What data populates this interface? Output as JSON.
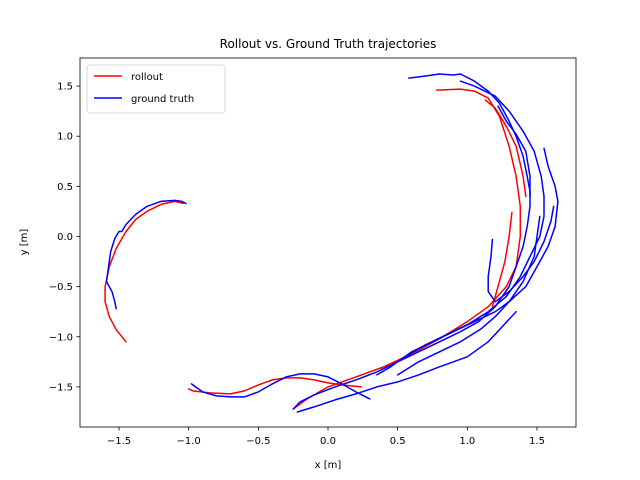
{
  "chart_data": {
    "type": "line",
    "title": "Rollout vs. Ground Truth trajectories",
    "xlabel": "x [m]",
    "ylabel": "y [m]",
    "xlim": [
      -1.78,
      1.78
    ],
    "ylim": [
      -1.9,
      1.78
    ],
    "xticks": [
      -1.5,
      -1.0,
      -0.5,
      0.0,
      0.5,
      1.0,
      1.5
    ],
    "xtick_labels": [
      "−1.5",
      "−1.0",
      "−0.5",
      "0.0",
      "0.5",
      "1.0",
      "1.5"
    ],
    "yticks": [
      -1.5,
      -1.0,
      -0.5,
      0.0,
      0.5,
      1.0,
      1.5
    ],
    "ytick_labels": [
      "−1.5",
      "−1.0",
      "−0.5",
      "0.0",
      "0.5",
      "1.0",
      "1.5"
    ],
    "grid": false,
    "legend_position": "top-left",
    "legend": [
      {
        "label": "rollout",
        "color": "#ff0000"
      },
      {
        "label": "ground truth",
        "color": "#0000ff"
      }
    ],
    "series": [
      {
        "name": "rollout",
        "color": "#ff0000",
        "segments": [
          [
            [
              -1.04,
              0.33
            ],
            [
              -1.1,
              0.35
            ],
            [
              -1.2,
              0.32
            ],
            [
              -1.3,
              0.25
            ],
            [
              -1.38,
              0.17
            ],
            [
              -1.45,
              0.05
            ],
            [
              -1.52,
              -0.12
            ],
            [
              -1.57,
              -0.3
            ],
            [
              -1.6,
              -0.5
            ],
            [
              -1.6,
              -0.65
            ],
            [
              -1.57,
              -0.8
            ],
            [
              -1.52,
              -0.93
            ],
            [
              -1.45,
              -1.05
            ]
          ],
          [
            [
              0.78,
              1.46
            ],
            [
              0.95,
              1.47
            ],
            [
              1.05,
              1.45
            ],
            [
              1.15,
              1.38
            ],
            [
              1.23,
              1.2
            ],
            [
              1.3,
              0.9
            ],
            [
              1.35,
              0.6
            ],
            [
              1.38,
              0.3
            ],
            [
              1.38,
              0.0
            ],
            [
              1.35,
              -0.3
            ],
            [
              1.28,
              -0.5
            ],
            [
              1.15,
              -0.7
            ],
            [
              1.0,
              -0.85
            ],
            [
              0.8,
              -1.02
            ],
            [
              0.6,
              -1.17
            ],
            [
              0.4,
              -1.3
            ],
            [
              0.2,
              -1.4
            ],
            [
              0.0,
              -1.5
            ],
            [
              -0.15,
              -1.62
            ],
            [
              -0.25,
              -1.72
            ]
          ],
          [
            [
              0.24,
              -1.5
            ],
            [
              0.1,
              -1.48
            ],
            [
              0.0,
              -1.46
            ],
            [
              -0.1,
              -1.43
            ],
            [
              -0.2,
              -1.41
            ],
            [
              -0.3,
              -1.41
            ],
            [
              -0.4,
              -1.43
            ],
            [
              -0.5,
              -1.48
            ],
            [
              -0.6,
              -1.54
            ],
            [
              -0.7,
              -1.57
            ],
            [
              -0.85,
              -1.56
            ],
            [
              -0.97,
              -1.54
            ],
            [
              -1.0,
              -1.52
            ]
          ],
          [
            [
              1.42,
              0.4
            ],
            [
              1.4,
              0.6
            ],
            [
              1.35,
              0.9
            ],
            [
              1.28,
              1.1
            ],
            [
              1.2,
              1.28
            ],
            [
              1.13,
              1.36
            ]
          ],
          [
            [
              1.32,
              0.24
            ],
            [
              1.3,
              0.0
            ],
            [
              1.27,
              -0.25
            ],
            [
              1.22,
              -0.5
            ],
            [
              1.18,
              -0.7
            ]
          ]
        ]
      },
      {
        "name": "ground truth",
        "color": "#0000ff",
        "segments": [
          [
            [
              -1.02,
              0.33
            ],
            [
              -1.05,
              0.35
            ],
            [
              -1.1,
              0.36
            ],
            [
              -1.2,
              0.35
            ],
            [
              -1.3,
              0.3
            ],
            [
              -1.38,
              0.22
            ],
            [
              -1.45,
              0.12
            ],
            [
              -1.48,
              0.05
            ],
            [
              -1.5,
              0.05
            ],
            [
              -1.53,
              -0.02
            ],
            [
              -1.56,
              -0.15
            ],
            [
              -1.58,
              -0.35
            ],
            [
              -1.59,
              -0.45
            ],
            [
              -1.55,
              -0.55
            ],
            [
              -1.53,
              -0.65
            ],
            [
              -1.52,
              -0.72
            ]
          ],
          [
            [
              0.58,
              1.58
            ],
            [
              0.7,
              1.6
            ],
            [
              0.8,
              1.62
            ],
            [
              0.9,
              1.61
            ],
            [
              0.95,
              1.62
            ],
            [
              1.05,
              1.55
            ],
            [
              1.15,
              1.45
            ],
            [
              1.23,
              1.33
            ],
            [
              1.3,
              1.15
            ],
            [
              1.35,
              1.0
            ],
            [
              1.4,
              0.8
            ],
            [
              1.43,
              0.6
            ],
            [
              1.45,
              0.45
            ],
            [
              1.45,
              0.3
            ],
            [
              1.43,
              0.1
            ],
            [
              1.4,
              -0.1
            ],
            [
              1.35,
              -0.3
            ],
            [
              1.3,
              -0.5
            ],
            [
              1.2,
              -0.7
            ],
            [
              1.08,
              -0.85
            ],
            [
              0.95,
              -0.95
            ],
            [
              0.8,
              -1.05
            ],
            [
              0.65,
              -1.15
            ],
            [
              0.5,
              -1.25
            ],
            [
              0.35,
              -1.35
            ],
            [
              0.2,
              -1.43
            ],
            [
              0.05,
              -1.5
            ],
            [
              -0.1,
              -1.58
            ],
            [
              -0.2,
              -1.65
            ],
            [
              -0.25,
              -1.72
            ]
          ],
          [
            [
              0.95,
              1.55
            ],
            [
              1.05,
              1.5
            ],
            [
              1.2,
              1.4
            ],
            [
              1.3,
              1.25
            ],
            [
              1.4,
              1.05
            ],
            [
              1.48,
              0.85
            ],
            [
              1.53,
              0.6
            ],
            [
              1.55,
              0.4
            ],
            [
              1.55,
              0.2
            ],
            [
              1.52,
              0.0
            ],
            [
              1.45,
              -0.2
            ],
            [
              1.38,
              -0.4
            ],
            [
              1.28,
              -0.6
            ],
            [
              1.15,
              -0.75
            ],
            [
              1.0,
              -0.88
            ],
            [
              0.85,
              -0.98
            ],
            [
              0.7,
              -1.08
            ],
            [
              0.55,
              -1.2
            ],
            [
              0.45,
              -1.3
            ],
            [
              0.35,
              -1.38
            ]
          ],
          [
            [
              1.55,
              0.88
            ],
            [
              1.58,
              0.7
            ],
            [
              1.63,
              0.5
            ],
            [
              1.65,
              0.35
            ],
            [
              1.63,
              0.1
            ],
            [
              1.58,
              -0.1
            ],
            [
              1.5,
              -0.3
            ],
            [
              1.42,
              -0.5
            ],
            [
              1.3,
              -0.65
            ],
            [
              1.2,
              -0.75
            ],
            [
              1.05,
              -0.85
            ],
            [
              0.9,
              -0.95
            ],
            [
              0.75,
              -1.05
            ],
            [
              0.6,
              -1.15
            ],
            [
              0.5,
              -1.25
            ]
          ],
          [
            [
              1.18,
              -0.03
            ],
            [
              1.17,
              -0.2
            ],
            [
              1.15,
              -0.4
            ],
            [
              1.15,
              -0.55
            ],
            [
              1.2,
              -0.65
            ],
            [
              1.3,
              -0.55
            ],
            [
              1.4,
              -0.4
            ],
            [
              1.48,
              -0.25
            ],
            [
              1.55,
              -0.05
            ],
            [
              1.6,
              0.15
            ],
            [
              1.62,
              0.3
            ]
          ],
          [
            [
              0.5,
              -1.38
            ],
            [
              0.65,
              -1.25
            ],
            [
              0.8,
              -1.15
            ],
            [
              0.95,
              -1.05
            ],
            [
              1.1,
              -0.92
            ],
            [
              1.2,
              -0.8
            ],
            [
              1.3,
              -0.65
            ],
            [
              1.4,
              -0.45
            ],
            [
              1.48,
              -0.2
            ],
            [
              1.5,
              0.0
            ],
            [
              1.52,
              0.2
            ]
          ],
          [
            [
              0.3,
              -1.62
            ],
            [
              0.2,
              -1.55
            ],
            [
              0.1,
              -1.47
            ],
            [
              0.0,
              -1.4
            ],
            [
              -0.1,
              -1.37
            ],
            [
              -0.2,
              -1.37
            ],
            [
              -0.3,
              -1.4
            ],
            [
              -0.4,
              -1.47
            ],
            [
              -0.5,
              -1.55
            ],
            [
              -0.6,
              -1.6
            ],
            [
              -0.7,
              -1.6
            ],
            [
              -0.8,
              -1.59
            ],
            [
              -0.9,
              -1.55
            ],
            [
              -0.95,
              -1.5
            ],
            [
              -0.98,
              -1.47
            ]
          ],
          [
            [
              -0.22,
              -1.75
            ],
            [
              -0.1,
              -1.7
            ],
            [
              0.05,
              -1.63
            ],
            [
              0.2,
              -1.57
            ],
            [
              0.35,
              -1.5
            ],
            [
              0.5,
              -1.45
            ],
            [
              0.65,
              -1.38
            ],
            [
              0.8,
              -1.3
            ],
            [
              1.0,
              -1.2
            ],
            [
              1.15,
              -1.05
            ],
            [
              1.25,
              -0.9
            ],
            [
              1.35,
              -0.75
            ]
          ],
          [
            [
              1.22,
              1.3
            ],
            [
              1.28,
              1.15
            ],
            [
              1.35,
              1.02
            ],
            [
              1.42,
              0.85
            ],
            [
              1.45,
              0.6
            ],
            [
              1.45,
              0.4
            ]
          ]
        ]
      }
    ]
  }
}
